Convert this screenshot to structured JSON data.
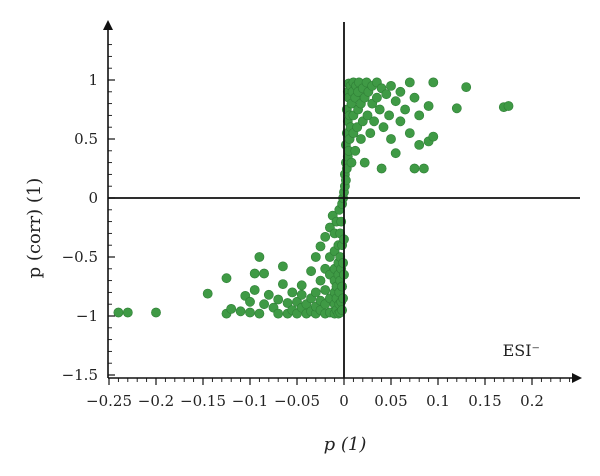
{
  "chart_data": {
    "type": "scatter",
    "title": "",
    "xlabel": "p (1)",
    "ylabel": "p (corr) (1)",
    "annotation": "ESI⁻",
    "xlim": [
      -0.26,
      0.25
    ],
    "ylim": [
      -1.5,
      1.45
    ],
    "x_ticks": [
      -0.25,
      -0.2,
      -0.15,
      -0.1,
      -0.05,
      0,
      0.05,
      0.1,
      0.15,
      0.2
    ],
    "x_tick_labels": [
      "−0.25",
      "−0.2",
      "−0.15",
      "−0.1",
      "−0.05",
      "0",
      "0.05",
      "0.1",
      "0.15",
      "0.2"
    ],
    "y_ticks": [
      -1.5,
      -1,
      -0.5,
      0,
      0.5,
      1
    ],
    "y_tick_labels": [
      "−1.5",
      "−1",
      "−0.5",
      "0",
      "0.5",
      "1"
    ],
    "grid": false,
    "point_color": "#3f9a45",
    "series": [
      {
        "points": [
          [
            -0.24,
            -0.97
          ],
          [
            -0.23,
            -0.97
          ],
          [
            -0.2,
            -0.97
          ],
          [
            -0.145,
            -0.81
          ],
          [
            -0.125,
            -0.68
          ],
          [
            -0.125,
            -0.98
          ],
          [
            -0.12,
            -0.94
          ],
          [
            -0.11,
            -0.96
          ],
          [
            -0.105,
            -0.83
          ],
          [
            -0.1,
            -0.88
          ],
          [
            -0.1,
            -0.97
          ],
          [
            -0.095,
            -0.78
          ],
          [
            -0.095,
            -0.64
          ],
          [
            -0.09,
            -0.98
          ],
          [
            -0.09,
            -0.5
          ],
          [
            -0.085,
            -0.64
          ],
          [
            -0.085,
            -0.9
          ],
          [
            -0.08,
            -0.82
          ],
          [
            -0.075,
            -0.93
          ],
          [
            -0.07,
            -0.98
          ],
          [
            -0.07,
            -0.86
          ],
          [
            -0.065,
            -0.73
          ],
          [
            -0.065,
            -0.58
          ],
          [
            -0.06,
            -0.98
          ],
          [
            -0.06,
            -0.89
          ],
          [
            -0.055,
            -0.95
          ],
          [
            -0.055,
            -0.8
          ],
          [
            -0.05,
            -0.98
          ],
          [
            -0.05,
            -0.88
          ],
          [
            -0.045,
            -0.93
          ],
          [
            -0.045,
            -0.82
          ],
          [
            -0.045,
            -0.74
          ],
          [
            -0.04,
            -0.98
          ],
          [
            -0.04,
            -0.9
          ],
          [
            -0.035,
            -0.96
          ],
          [
            -0.035,
            -0.85
          ],
          [
            -0.035,
            -0.62
          ],
          [
            -0.03,
            -0.98
          ],
          [
            -0.03,
            -0.92
          ],
          [
            -0.03,
            -0.8
          ],
          [
            -0.03,
            -0.5
          ],
          [
            -0.025,
            -0.95
          ],
          [
            -0.025,
            -0.87
          ],
          [
            -0.025,
            -0.7
          ],
          [
            -0.025,
            -0.41
          ],
          [
            -0.02,
            -0.98
          ],
          [
            -0.02,
            -0.9
          ],
          [
            -0.02,
            -0.78
          ],
          [
            -0.02,
            -0.6
          ],
          [
            -0.02,
            -0.33
          ],
          [
            -0.015,
            -0.97
          ],
          [
            -0.015,
            -0.85
          ],
          [
            -0.015,
            -0.65
          ],
          [
            -0.015,
            -0.5
          ],
          [
            -0.015,
            -0.25
          ],
          [
            -0.012,
            -0.15
          ],
          [
            -0.01,
            -0.98
          ],
          [
            -0.01,
            -0.9
          ],
          [
            -0.01,
            -0.8
          ],
          [
            -0.01,
            -0.7
          ],
          [
            -0.01,
            -0.6
          ],
          [
            -0.01,
            -0.45
          ],
          [
            -0.01,
            -0.3
          ],
          [
            -0.008,
            -0.95
          ],
          [
            -0.008,
            -0.85
          ],
          [
            -0.008,
            -0.75
          ],
          [
            -0.008,
            -0.2
          ],
          [
            -0.006,
            -0.98
          ],
          [
            -0.006,
            -0.65
          ],
          [
            -0.006,
            -0.55
          ],
          [
            -0.006,
            -0.4
          ],
          [
            -0.005,
            -0.9
          ],
          [
            -0.005,
            -0.8
          ],
          [
            -0.005,
            -0.1
          ],
          [
            -0.004,
            -0.97
          ],
          [
            -0.004,
            -0.7
          ],
          [
            -0.004,
            -0.5
          ],
          [
            -0.004,
            -0.3
          ],
          [
            -0.003,
            -0.88
          ],
          [
            -0.003,
            -0.6
          ],
          [
            -0.003,
            -0.2
          ],
          [
            -0.002,
            -0.95
          ],
          [
            -0.002,
            -0.75
          ],
          [
            -0.002,
            -0.4
          ],
          [
            -0.002,
            -0.05
          ],
          [
            -0.001,
            -0.85
          ],
          [
            -0.001,
            -0.55
          ],
          [
            -0.001,
            0.0
          ],
          [
            0.0,
            -0.65
          ],
          [
            0.0,
            -0.35
          ],
          [
            0.0,
            0.05
          ],
          [
            0.001,
            0.1
          ],
          [
            0.001,
            0.2
          ],
          [
            0.002,
            0.3
          ],
          [
            0.002,
            0.15
          ],
          [
            0.002,
            0.45
          ],
          [
            0.003,
            0.25
          ],
          [
            0.003,
            0.55
          ],
          [
            0.003,
            0.75
          ],
          [
            0.004,
            0.35
          ],
          [
            0.004,
            0.65
          ],
          [
            0.004,
            0.9
          ],
          [
            0.005,
            0.4
          ],
          [
            0.005,
            0.85
          ],
          [
            0.005,
            0.97
          ],
          [
            0.006,
            0.5
          ],
          [
            0.006,
            0.7
          ],
          [
            0.007,
            0.6
          ],
          [
            0.007,
            0.95
          ],
          [
            0.008,
            0.8
          ],
          [
            0.008,
            0.3
          ],
          [
            0.009,
            0.9
          ],
          [
            0.01,
            0.98
          ],
          [
            0.01,
            0.7
          ],
          [
            0.01,
            0.55
          ],
          [
            0.012,
            0.85
          ],
          [
            0.012,
            0.4
          ],
          [
            0.013,
            0.95
          ],
          [
            0.014,
            0.6
          ],
          [
            0.015,
            0.9
          ],
          [
            0.015,
            0.75
          ],
          [
            0.016,
            0.98
          ],
          [
            0.018,
            0.8
          ],
          [
            0.018,
            0.5
          ],
          [
            0.02,
            0.93
          ],
          [
            0.02,
            0.65
          ],
          [
            0.022,
            0.85
          ],
          [
            0.022,
            0.3
          ],
          [
            0.024,
            0.98
          ],
          [
            0.025,
            0.7
          ],
          [
            0.026,
            0.9
          ],
          [
            0.028,
            0.55
          ],
          [
            0.03,
            0.95
          ],
          [
            0.03,
            0.8
          ],
          [
            0.032,
            0.65
          ],
          [
            0.035,
            0.98
          ],
          [
            0.035,
            0.85
          ],
          [
            0.038,
            0.75
          ],
          [
            0.04,
            0.93
          ],
          [
            0.04,
            0.25
          ],
          [
            0.042,
            0.6
          ],
          [
            0.045,
            0.88
          ],
          [
            0.048,
            0.7
          ],
          [
            0.05,
            0.95
          ],
          [
            0.05,
            0.5
          ],
          [
            0.055,
            0.82
          ],
          [
            0.055,
            0.38
          ],
          [
            0.06,
            0.9
          ],
          [
            0.06,
            0.65
          ],
          [
            0.065,
            0.75
          ],
          [
            0.07,
            0.98
          ],
          [
            0.07,
            0.55
          ],
          [
            0.075,
            0.85
          ],
          [
            0.075,
            0.25
          ],
          [
            0.08,
            0.7
          ],
          [
            0.08,
            0.45
          ],
          [
            0.085,
            0.25
          ],
          [
            0.09,
            0.78
          ],
          [
            0.09,
            0.48
          ],
          [
            0.095,
            0.98
          ],
          [
            0.095,
            0.52
          ],
          [
            0.12,
            0.76
          ],
          [
            0.13,
            0.94
          ],
          [
            0.17,
            0.77
          ],
          [
            0.175,
            0.78
          ]
        ]
      }
    ]
  }
}
